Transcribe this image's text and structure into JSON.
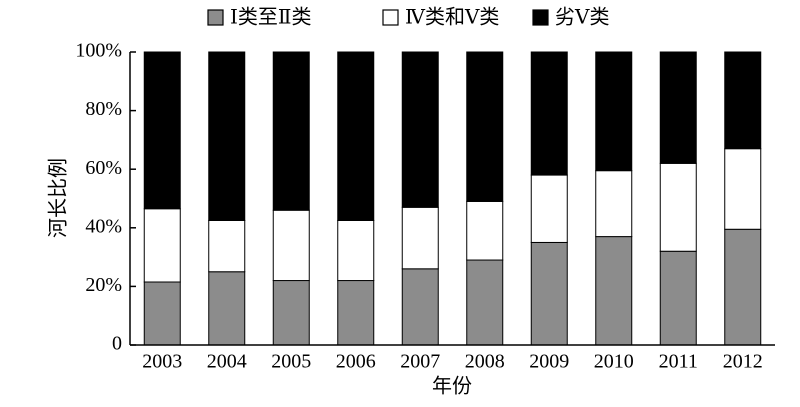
{
  "chart_data": {
    "type": "stacked_bar",
    "xlabel": "年份",
    "ylabel": "河长比例",
    "categories": [
      "2003",
      "2004",
      "2005",
      "2006",
      "2007",
      "2008",
      "2009",
      "2010",
      "2011",
      "2012"
    ],
    "series": [
      {
        "name": "Ⅰ类至Ⅱ类",
        "color": "#8c8c8c",
        "values": [
          21.5,
          25,
          22,
          22,
          26,
          29,
          35,
          37,
          32,
          39.5
        ]
      },
      {
        "name": "Ⅳ类和Ⅴ类",
        "color": "#ffffff",
        "values": [
          25,
          17.5,
          24,
          20.5,
          21,
          20,
          23,
          22.5,
          30,
          27.5
        ]
      },
      {
        "name": "劣Ⅴ类",
        "color": "#000000",
        "values": [
          53.5,
          57.5,
          54,
          57.5,
          53,
          51,
          42,
          40.5,
          38,
          33
        ]
      }
    ],
    "ylim": [
      0,
      100
    ],
    "yticks": [
      0,
      {
        "value": 20,
        "label": "20%"
      },
      {
        "value": 40,
        "label": "40%"
      },
      {
        "value": 60,
        "label": "60%"
      },
      {
        "value": 80,
        "label": "80%"
      },
      {
        "value": 100,
        "label": "100%"
      }
    ],
    "legend": "top"
  }
}
